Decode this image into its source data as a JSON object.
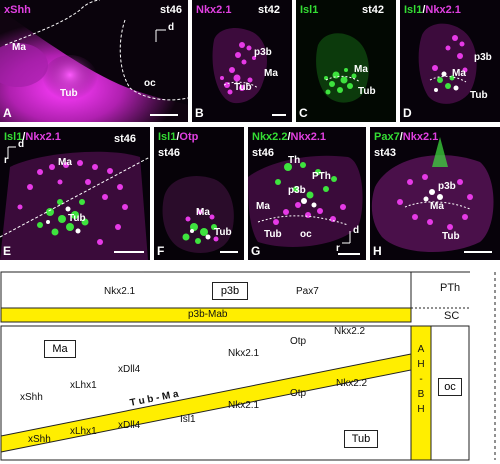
{
  "panels": {
    "A": {
      "letter": "A",
      "stain": "xShh",
      "stage": "st46",
      "labels": {
        "ma": "Ma",
        "tub": "Tub",
        "oc": "oc",
        "axis": "d"
      }
    },
    "B": {
      "letter": "B",
      "stain": "Nkx2.1",
      "stage": "st42",
      "labels": {
        "p3b": "p3b",
        "ma": "Ma",
        "tub": "Tub"
      }
    },
    "C": {
      "letter": "C",
      "stain": "Isl1",
      "stage": "st42",
      "labels": {
        "ma": "Ma",
        "tub": "Tub"
      }
    },
    "D": {
      "letter": "D",
      "stain_a": "Isl1",
      "slash": "/",
      "stain_b": "Nkx2.1",
      "labels": {
        "p3b": "p3b",
        "ma": "Ma",
        "tub": "Tub"
      }
    },
    "E": {
      "letter": "E",
      "stain_a": "Isl1",
      "slash": "/",
      "stain_b": "Nkx2.1",
      "stage": "st46",
      "labels": {
        "ma": "Ma",
        "tub": "Tub",
        "axis": "d",
        "axis_r": "r"
      }
    },
    "F": {
      "letter": "F",
      "stain_a": "Isl1",
      "slash": "/",
      "stain_b": "Otp",
      "stage": "st46",
      "labels": {
        "ma": "Ma",
        "tub": "Tub"
      }
    },
    "G": {
      "letter": "G",
      "stain_a": "Nkx2.2",
      "slash": "/",
      "stain_b": "Nkx2.1",
      "stage": "st46",
      "labels": {
        "th": "Th",
        "pth": "PTh",
        "p3b": "p3b",
        "ma": "Ma",
        "tub": "Tub",
        "oc": "oc",
        "axis": "d",
        "axis_r": "r"
      }
    },
    "H": {
      "letter": "H",
      "stain_a": "Pax7",
      "slash": "/",
      "stain_b": "Nkx2.1",
      "stage": "st43",
      "labels": {
        "p3b": "p3b",
        "ma": "Ma",
        "tub": "Tub"
      }
    }
  },
  "schematic": {
    "top_row": {
      "nkx21": "Nkx2.1",
      "p3b": "p3b",
      "pax7": "Pax7",
      "pth": "PTh"
    },
    "band": {
      "label": "p3b-Mab",
      "color": "#ffee00"
    },
    "sc": "SC",
    "ma": "Ma",
    "upper": {
      "xshh": "xShh",
      "xlhx1": "xLhx1",
      "xdll4": "xDll4",
      "nkx21": "Nkx2.1",
      "otp": "Otp",
      "nkx22": "Nkx2.2"
    },
    "diag_band": "T u b - M a",
    "lower": {
      "xshh": "xShh",
      "xlhx1": "xLhx1",
      "xdll4": "xDll4",
      "isl1": "Isl1",
      "nkx21": "Nkx2.1",
      "otp": "Otp",
      "nkx22": "Nkx2.2"
    },
    "ahbh": [
      "A",
      "H",
      "-",
      "B",
      "H"
    ],
    "oc": "oc",
    "tub": "Tub"
  }
}
